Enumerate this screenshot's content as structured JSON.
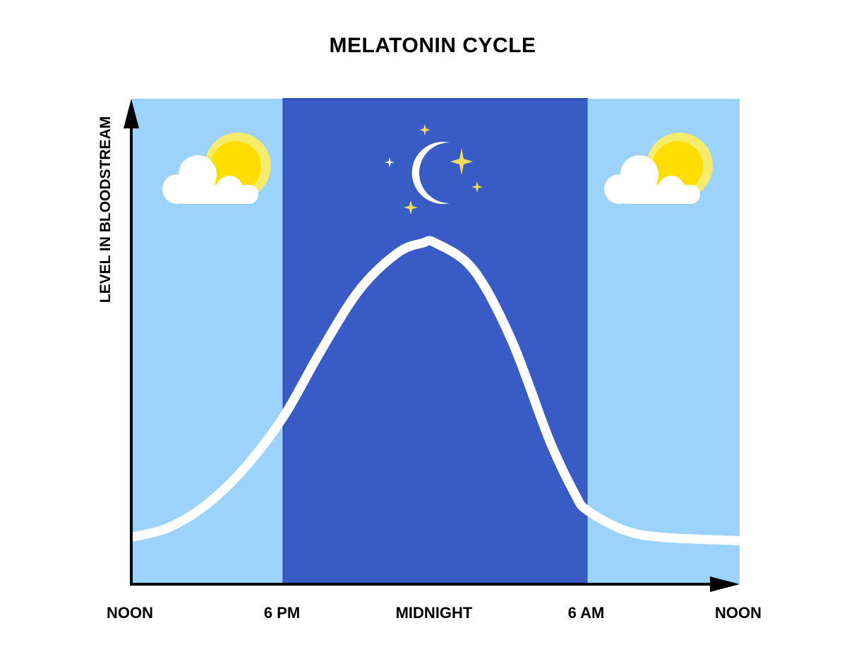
{
  "chart_data": {
    "type": "line",
    "title": "MELATONIN CYCLE",
    "ylabel": "LEVEL IN BLOODSTREAM",
    "xlabel": "",
    "x_ticks": [
      {
        "hour": 0,
        "label": "NOON"
      },
      {
        "hour": 6,
        "label": "6 PM"
      },
      {
        "hour": 12,
        "label": "MIDNIGHT"
      },
      {
        "hour": 18,
        "label": "6 AM"
      },
      {
        "hour": 24,
        "label": "NOON"
      }
    ],
    "xlim": [
      0,
      24
    ],
    "ylim": [
      0,
      100
    ],
    "regions": [
      {
        "from_hour": 0,
        "to_hour": 6,
        "phase": "day",
        "icon": "sun-cloud-icon"
      },
      {
        "from_hour": 6,
        "to_hour": 18,
        "phase": "night",
        "icon": "moon-stars-icon"
      },
      {
        "from_hour": 18,
        "to_hour": 24,
        "phase": "day",
        "icon": "sun-cloud-icon"
      }
    ],
    "series": [
      {
        "x": [
          0,
          1.5,
          3,
          4.5,
          6,
          7.5,
          9,
          10.5,
          11.5,
          12,
          13.5,
          15,
          16.5,
          17.5,
          18,
          19.5,
          21,
          24
        ],
        "y": [
          6,
          9,
          16,
          27,
          42,
          62,
          80,
          91,
          94,
          94,
          86,
          65,
          35,
          19,
          14,
          8,
          6,
          5
        ]
      }
    ],
    "grid": false,
    "colors": {
      "day": "#9BD3FC",
      "night": "#385BC6",
      "night_border": "#2D4DB8",
      "curve": "#FFFFFF",
      "sun": "#FFDD00",
      "sun_rays": "#F4EC6A",
      "star": "#F3D85E",
      "axis": "#000000"
    }
  }
}
